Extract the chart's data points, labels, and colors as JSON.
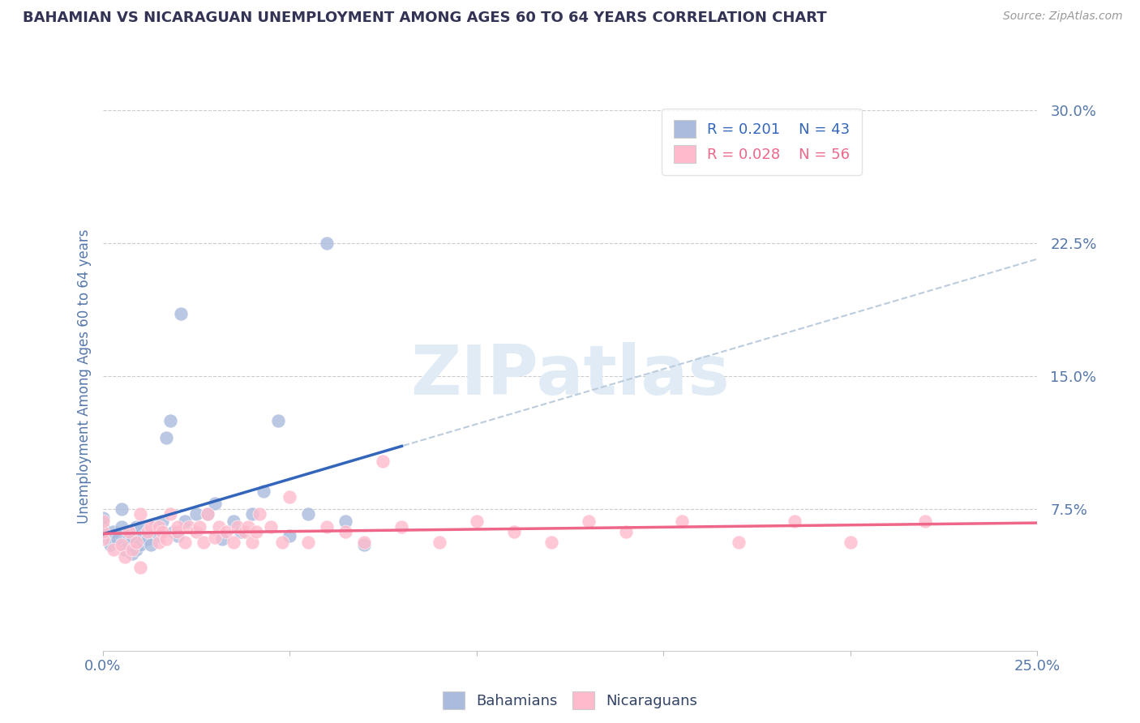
{
  "title": "BAHAMIAN VS NICARAGUAN UNEMPLOYMENT AMONG AGES 60 TO 64 YEARS CORRELATION CHART",
  "source": "Source: ZipAtlas.com",
  "xlim": [
    0.0,
    0.25
  ],
  "ylim": [
    -0.005,
    0.305
  ],
  "ytick_vals": [
    0.075,
    0.15,
    0.225,
    0.3
  ],
  "ytick_labels": [
    "7.5%",
    "15.0%",
    "22.5%",
    "30.0%"
  ],
  "xtick_vals": [
    0.0,
    0.05,
    0.1,
    0.15,
    0.2,
    0.25
  ],
  "xtick_labels": [
    "0.0%",
    "",
    "",
    "",
    "",
    "25.0%"
  ],
  "ylabel": "Unemployment Among Ages 60 to 64 years",
  "legend_r1": "R = 0.201",
  "legend_n1": "N = 43",
  "legend_r2": "R = 0.028",
  "legend_n2": "N = 56",
  "blue_scatter_color": "#AABBDD",
  "pink_scatter_color": "#FFBBCC",
  "blue_line_color": "#3366BB",
  "pink_line_color": "#EE6688",
  "dash_line_color": "#BBCCDD",
  "title_color": "#333355",
  "tick_label_color": "#5577AA",
  "watermark_color": "#E0EBF5",
  "bahamians_x": [
    0.0,
    0.0,
    0.0,
    0.002,
    0.003,
    0.004,
    0.005,
    0.005,
    0.006,
    0.007,
    0.007,
    0.008,
    0.008,
    0.009,
    0.009,
    0.01,
    0.01,
    0.011,
    0.012,
    0.013,
    0.014,
    0.015,
    0.016,
    0.017,
    0.018,
    0.019,
    0.02,
    0.021,
    0.022,
    0.025,
    0.028,
    0.03,
    0.032,
    0.035,
    0.037,
    0.04,
    0.043,
    0.047,
    0.05,
    0.055,
    0.06,
    0.065,
    0.07
  ],
  "bahamians_y": [
    0.06,
    0.065,
    0.07,
    0.055,
    0.062,
    0.058,
    0.065,
    0.075,
    0.052,
    0.055,
    0.06,
    0.05,
    0.058,
    0.052,
    0.065,
    0.055,
    0.065,
    0.06,
    0.058,
    0.055,
    0.065,
    0.06,
    0.068,
    0.115,
    0.125,
    0.062,
    0.06,
    0.185,
    0.068,
    0.072,
    0.072,
    0.078,
    0.058,
    0.068,
    0.062,
    0.072,
    0.085,
    0.125,
    0.06,
    0.072,
    0.225,
    0.068,
    0.055
  ],
  "nicaraguans_x": [
    0.0,
    0.0,
    0.0,
    0.003,
    0.005,
    0.006,
    0.007,
    0.008,
    0.009,
    0.01,
    0.01,
    0.012,
    0.013,
    0.015,
    0.015,
    0.016,
    0.017,
    0.018,
    0.02,
    0.02,
    0.022,
    0.023,
    0.025,
    0.026,
    0.027,
    0.028,
    0.03,
    0.031,
    0.033,
    0.035,
    0.036,
    0.038,
    0.039,
    0.04,
    0.041,
    0.042,
    0.045,
    0.048,
    0.05,
    0.055,
    0.06,
    0.065,
    0.07,
    0.075,
    0.08,
    0.09,
    0.1,
    0.11,
    0.12,
    0.13,
    0.14,
    0.155,
    0.17,
    0.185,
    0.2,
    0.22
  ],
  "nicaraguans_y": [
    0.058,
    0.062,
    0.068,
    0.052,
    0.055,
    0.048,
    0.062,
    0.052,
    0.056,
    0.042,
    0.072,
    0.062,
    0.065,
    0.056,
    0.065,
    0.062,
    0.058,
    0.072,
    0.062,
    0.065,
    0.056,
    0.065,
    0.062,
    0.065,
    0.056,
    0.072,
    0.059,
    0.065,
    0.062,
    0.056,
    0.065,
    0.062,
    0.065,
    0.056,
    0.062,
    0.072,
    0.065,
    0.056,
    0.082,
    0.056,
    0.065,
    0.062,
    0.056,
    0.102,
    0.065,
    0.056,
    0.068,
    0.062,
    0.056,
    0.068,
    0.062,
    0.068,
    0.056,
    0.068,
    0.056,
    0.068
  ]
}
